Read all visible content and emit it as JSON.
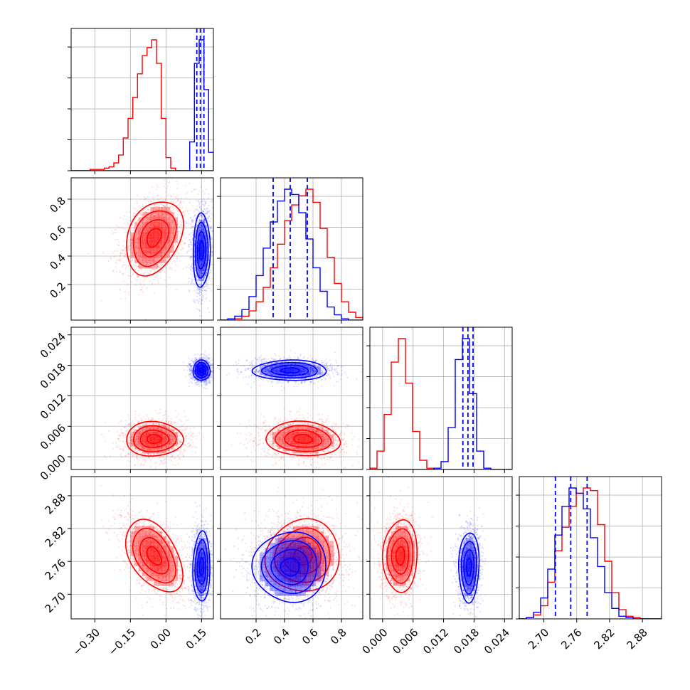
{
  "chart_data": {
    "type": "corner",
    "colors": {
      "series_a": "#ff0000",
      "series_b": "#0000ff",
      "grid": "#b0b0b0",
      "frame": "#000000"
    },
    "grid": true,
    "parameters": [
      {
        "range": [
          -0.4,
          0.2
        ],
        "ticks": [
          -0.3,
          -0.15,
          0.0,
          0.15
        ],
        "tick_labels": [
          "−0.30",
          "−0.15",
          "0.00",
          "0.15"
        ]
      },
      {
        "range": [
          -0.05,
          0.95
        ],
        "ticks": [
          0.2,
          0.4,
          0.6,
          0.8
        ],
        "tick_labels": [
          "0.2",
          "0.4",
          "0.6",
          "0.8"
        ]
      },
      {
        "range": [
          -0.0025,
          0.0255
        ],
        "ticks": [
          0.0,
          0.006,
          0.012,
          0.018,
          0.024
        ],
        "tick_labels": [
          "0.000",
          "0.006",
          "0.012",
          "0.018",
          "0.024"
        ]
      },
      {
        "range": [
          2.655,
          2.915
        ],
        "ticks": [
          2.7,
          2.76,
          2.82,
          2.88
        ],
        "tick_labels": [
          "2.70",
          "2.76",
          "2.82",
          "2.88"
        ]
      }
    ],
    "series": [
      {
        "color": "#ff0000",
        "marginals": [
          {
            "bins": [
              -0.4,
              -0.38,
              -0.36,
              -0.34,
              -0.32,
              -0.3,
              -0.28,
              -0.26,
              -0.24,
              -0.22,
              -0.2,
              -0.18,
              -0.16,
              -0.14,
              -0.12,
              -0.1,
              -0.08,
              -0.06,
              -0.04,
              -0.02,
              0.0,
              0.02,
              0.04,
              0.06,
              0.08,
              0.1,
              0.12,
              0.14,
              0.16,
              0.18,
              0.2
            ],
            "counts": [
              0,
              0,
              0,
              0,
              0.01,
              0.01,
              0.01,
              0.02,
              0.03,
              0.06,
              0.12,
              0.25,
              0.4,
              0.56,
              0.74,
              0.88,
              0.94,
              1.0,
              0.82,
              0.4,
              0.1,
              0.02,
              0,
              0,
              0,
              0,
              0,
              0,
              0,
              0
            ]
          },
          {
            "bins": [
              -0.05,
              0.0,
              0.05,
              0.1,
              0.15,
              0.2,
              0.25,
              0.3,
              0.35,
              0.4,
              0.45,
              0.5,
              0.55,
              0.6,
              0.65,
              0.7,
              0.75,
              0.8,
              0.85,
              0.9,
              0.95
            ],
            "counts": [
              0,
              0,
              0.01,
              0.03,
              0.07,
              0.14,
              0.25,
              0.4,
              0.58,
              0.76,
              0.88,
              0.95,
              1.0,
              0.9,
              0.7,
              0.48,
              0.28,
              0.14,
              0.06,
              0.02
            ]
          },
          {
            "bins": [
              -0.0025,
              -0.0011,
              0.0003,
              0.0017,
              0.0031,
              0.0045,
              0.0059,
              0.0073,
              0.0087,
              0.0101,
              0.0115,
              0.0129,
              0.0143,
              0.0157,
              0.0171,
              0.0185,
              0.0199,
              0.0213,
              0.0227,
              0.0241,
              0.0255
            ],
            "counts": [
              0.01,
              0.14,
              0.42,
              0.82,
              1.0,
              0.66,
              0.29,
              0.07,
              0.01,
              0,
              0,
              0,
              0,
              0,
              0,
              0,
              0,
              0,
              0,
              0
            ]
          },
          {
            "bins": [
              2.655,
              2.668,
              2.681,
              2.694,
              2.707,
              2.72,
              2.733,
              2.746,
              2.759,
              2.772,
              2.785,
              2.798,
              2.811,
              2.824,
              2.837,
              2.85,
              2.863,
              2.876,
              2.889,
              2.902,
              2.915
            ],
            "counts": [
              0,
              0.01,
              0.03,
              0.1,
              0.28,
              0.52,
              0.7,
              0.86,
              0.96,
              1.0,
              0.98,
              0.72,
              0.44,
              0.2,
              0.07,
              0.02,
              0.01,
              0,
              0,
              0
            ]
          }
        ],
        "means": [
          -0.05,
          0.53,
          0.0035,
          2.77
        ],
        "sigmas": [
          0.06,
          0.13,
          0.0017,
          0.033
        ],
        "corr": [
          [
            1,
            0.3,
            0.0,
            -0.45
          ],
          [
            0.3,
            1,
            -0.1,
            0.05
          ],
          [
            0.0,
            -0.1,
            1,
            0.05
          ],
          [
            -0.45,
            0.05,
            0.05,
            1
          ]
        ]
      },
      {
        "color": "#0000ff",
        "marginals": [
          {
            "bins": [
              -0.4,
              -0.38,
              -0.36,
              -0.34,
              -0.32,
              -0.3,
              -0.28,
              -0.26,
              -0.24,
              -0.22,
              -0.2,
              -0.18,
              -0.16,
              -0.14,
              -0.12,
              -0.1,
              -0.08,
              -0.06,
              -0.04,
              -0.02,
              0.0,
              0.02,
              0.04,
              0.06,
              0.08,
              0.1,
              0.12,
              0.14,
              0.16,
              0.18,
              0.2
            ],
            "counts": [
              0,
              0,
              0,
              0,
              0,
              0,
              0,
              0,
              0,
              0,
              0,
              0,
              0,
              0,
              0,
              0,
              0,
              0,
              0,
              0,
              0,
              0,
              0,
              0,
              0,
              0.22,
              0.82,
              1.0,
              0.62,
              0.14
            ]
          },
          {
            "bins": [
              -0.05,
              0.0,
              0.05,
              0.1,
              0.15,
              0.2,
              0.25,
              0.3,
              0.35,
              0.4,
              0.45,
              0.5,
              0.55,
              0.6,
              0.65,
              0.7,
              0.75,
              0.8,
              0.85,
              0.9,
              0.95
            ],
            "counts": [
              0,
              0.01,
              0.03,
              0.08,
              0.18,
              0.34,
              0.55,
              0.75,
              0.91,
              1.0,
              0.96,
              0.82,
              0.62,
              0.4,
              0.22,
              0.1,
              0.04,
              0.01,
              0,
              0
            ]
          },
          {
            "bins": [
              -0.0025,
              -0.0011,
              0.0003,
              0.0017,
              0.0031,
              0.0045,
              0.0059,
              0.0073,
              0.0087,
              0.0101,
              0.0115,
              0.0129,
              0.0143,
              0.0157,
              0.0171,
              0.0185,
              0.0199,
              0.0213,
              0.0227,
              0.0241,
              0.0255
            ],
            "counts": [
              0,
              0,
              0,
              0,
              0,
              0,
              0,
              0,
              0,
              0.01,
              0.06,
              0.32,
              0.84,
              1.0,
              0.58,
              0.14,
              0.01,
              0,
              0,
              0
            ]
          },
          {
            "bins": [
              2.655,
              2.668,
              2.681,
              2.694,
              2.707,
              2.72,
              2.733,
              2.746,
              2.759,
              2.772,
              2.785,
              2.798,
              2.811,
              2.824,
              2.837,
              2.85,
              2.863,
              2.876,
              2.889,
              2.902,
              2.915
            ],
            "counts": [
              0,
              0.01,
              0.05,
              0.16,
              0.38,
              0.64,
              0.86,
              1.0,
              0.96,
              0.84,
              0.62,
              0.4,
              0.2,
              0.08,
              0.02,
              0.01,
              0,
              0,
              0,
              0
            ]
          }
        ],
        "means": [
          0.15,
          0.44,
          0.017,
          2.75
        ],
        "sigmas": [
          0.018,
          0.13,
          0.001,
          0.032
        ],
        "corr": [
          [
            1,
            0.05,
            0.0,
            0.05
          ],
          [
            0.05,
            1,
            0.0,
            0.0
          ],
          [
            0.0,
            0.0,
            1,
            0.05
          ],
          [
            0.05,
            0.0,
            0.05,
            1
          ]
        ],
        "quantile_lines": [
          [
            0.13,
            0.145,
            0.16
          ],
          [
            0.32,
            0.44,
            0.56
          ],
          [
            0.0158,
            0.0168,
            0.0178
          ],
          [
            2.721,
            2.749,
            2.779
          ]
        ]
      }
    ]
  }
}
